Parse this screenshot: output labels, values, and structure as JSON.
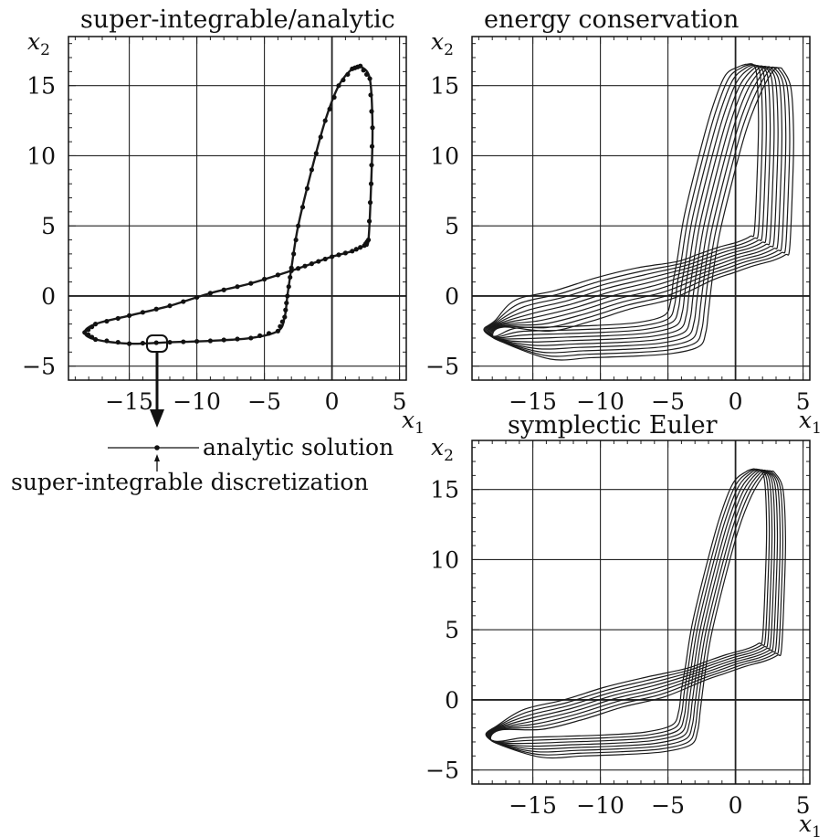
{
  "legend": {
    "analytic_label": "analytic solution",
    "discretization_label": "super-integrable discretization"
  },
  "chart_data": [
    {
      "type": "line",
      "title": "super-integrable/analytic",
      "xlabel": "x",
      "xlabel_sub": "1",
      "ylabel": "x",
      "ylabel_sub": "2",
      "xlim": [
        -19.5,
        5.5
      ],
      "ylim": [
        -6,
        18.5
      ],
      "xticks": [
        -15,
        -10,
        -5,
        0,
        5
      ],
      "yticks": [
        -5,
        0,
        5,
        10,
        15
      ],
      "xtick_labels": [
        "−15",
        "−10",
        "−5",
        "0",
        "5"
      ],
      "ytick_labels": [
        "−5",
        "0",
        "5",
        "10",
        "15"
      ],
      "grid_x": [
        -15,
        -10,
        -5,
        0,
        5
      ],
      "grid_y": [
        -5,
        0,
        5,
        10,
        15
      ],
      "series": [
        {
          "style": "analytic-with-markers",
          "turns": 1,
          "shift": [
            0,
            0
          ],
          "markers": true
        }
      ]
    },
    {
      "type": "line",
      "title": "energy conservation",
      "xlabel": "x",
      "xlabel_sub": "1",
      "ylabel": "x",
      "ylabel_sub": "2",
      "xlim": [
        -19.5,
        5.5
      ],
      "ylim": [
        -6,
        18.5
      ],
      "xticks": [
        -15,
        -10,
        -5,
        0,
        5
      ],
      "yticks": [
        -5,
        0,
        5,
        10,
        15
      ],
      "xtick_labels": [
        "−15",
        "−10",
        "−5",
        "0",
        "5"
      ],
      "ytick_labels": [
        "−5",
        "0",
        "5",
        "10",
        "15"
      ],
      "grid_x": [
        -15,
        -10,
        -5,
        0,
        5
      ],
      "grid_y": [
        -5,
        0,
        5,
        10,
        15
      ],
      "series": [
        {
          "style": "drifting-orbits",
          "turns": 10,
          "shift": [
            2.6,
            2.2
          ],
          "markers": false
        }
      ]
    },
    {
      "type": "line",
      "title": "symplectic Euler",
      "xlabel": "x",
      "xlabel_sub": "1",
      "ylabel": "x",
      "ylabel_sub": "2",
      "xlim": [
        -19.5,
        5.5
      ],
      "ylim": [
        -6,
        18.5
      ],
      "xticks": [
        -15,
        -10,
        -5,
        0,
        5
      ],
      "yticks": [
        -5,
        0,
        5,
        10,
        15
      ],
      "xtick_labels": [
        "−15",
        "−10",
        "−5",
        "0",
        "5"
      ],
      "ytick_labels": [
        "−5",
        "0",
        "5",
        "10",
        "15"
      ],
      "grid_x": [
        -15,
        -10,
        -5,
        0,
        5
      ],
      "grid_y": [
        -5,
        0,
        5,
        10,
        15
      ],
      "series": [
        {
          "style": "drifting-orbits",
          "turns": 8,
          "shift": [
            1.4,
            1.4
          ],
          "markers": false
        }
      ]
    }
  ],
  "orbit_shape": {
    "x": [
      2.1,
      2.8,
      3.0,
      2.9,
      2.7,
      2.4,
      1.5,
      0.0,
      -1.5,
      -3.0,
      -6.0,
      -9.0,
      -12.0,
      -15.0,
      -17.5,
      -18.3,
      -17.5,
      -15.0,
      -12.0,
      -9.0,
      -6.0,
      -4.0,
      -3.5,
      -3.3,
      -3.0,
      -2.5,
      -1.5,
      -0.5,
      0.5,
      1.5,
      2.1
    ],
    "y": [
      16.4,
      15.5,
      12.0,
      8.0,
      4.0,
      3.6,
      3.2,
      2.8,
      2.3,
      1.8,
      0.9,
      0.2,
      -0.7,
      -1.4,
      -2.0,
      -2.6,
      -3.1,
      -3.4,
      -3.3,
      -3.2,
      -3.0,
      -2.5,
      -1.5,
      0.0,
      2.0,
      5.0,
      9.0,
      12.5,
      15.0,
      16.2,
      16.4
    ]
  }
}
